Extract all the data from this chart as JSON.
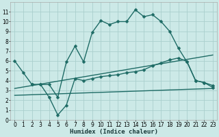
{
  "xlabel": "Humidex (Indice chaleur)",
  "bg_color": "#cce9e7",
  "grid_color": "#aacfcd",
  "line_color": "#1e6b65",
  "xlim": [
    -0.5,
    23.5
  ],
  "ylim": [
    0,
    12
  ],
  "xticks": [
    0,
    1,
    2,
    3,
    4,
    5,
    6,
    7,
    8,
    9,
    10,
    11,
    12,
    13,
    14,
    15,
    16,
    17,
    18,
    19,
    20,
    21,
    22,
    23
  ],
  "yticks": [
    0,
    1,
    2,
    3,
    4,
    5,
    6,
    7,
    8,
    9,
    10,
    11
  ],
  "line1_x": [
    0,
    1,
    2,
    3,
    4,
    5,
    6,
    7,
    8,
    9,
    10,
    11,
    12,
    13,
    14,
    15,
    16,
    17,
    18,
    19,
    20,
    21,
    22,
    23
  ],
  "line1_y": [
    6.0,
    4.8,
    3.6,
    3.6,
    3.6,
    2.3,
    5.9,
    7.5,
    5.9,
    8.9,
    10.1,
    9.7,
    10.0,
    10.0,
    11.2,
    10.5,
    10.7,
    10.0,
    9.0,
    7.3,
    5.9,
    4.0,
    3.8,
    3.3
  ],
  "line2_x": [
    2,
    3,
    4,
    5,
    6,
    7,
    8,
    9,
    10,
    11,
    12,
    13,
    14,
    15,
    16,
    17,
    18,
    19,
    20,
    21,
    22,
    23
  ],
  "line2_y": [
    3.6,
    3.6,
    2.3,
    0.5,
    1.5,
    4.2,
    4.0,
    4.2,
    4.4,
    4.5,
    4.6,
    4.8,
    4.9,
    5.1,
    5.5,
    5.8,
    6.1,
    6.3,
    5.95,
    4.0,
    3.8,
    3.5
  ],
  "line3_x": [
    0,
    23
  ],
  "line3_y": [
    3.2,
    6.6
  ],
  "line4_x": [
    0,
    23
  ],
  "line4_y": [
    2.5,
    3.2
  ],
  "markersize": 2.5,
  "linewidth": 1.0,
  "tick_fontsize": 5.5,
  "xlabel_fontsize": 6.5
}
